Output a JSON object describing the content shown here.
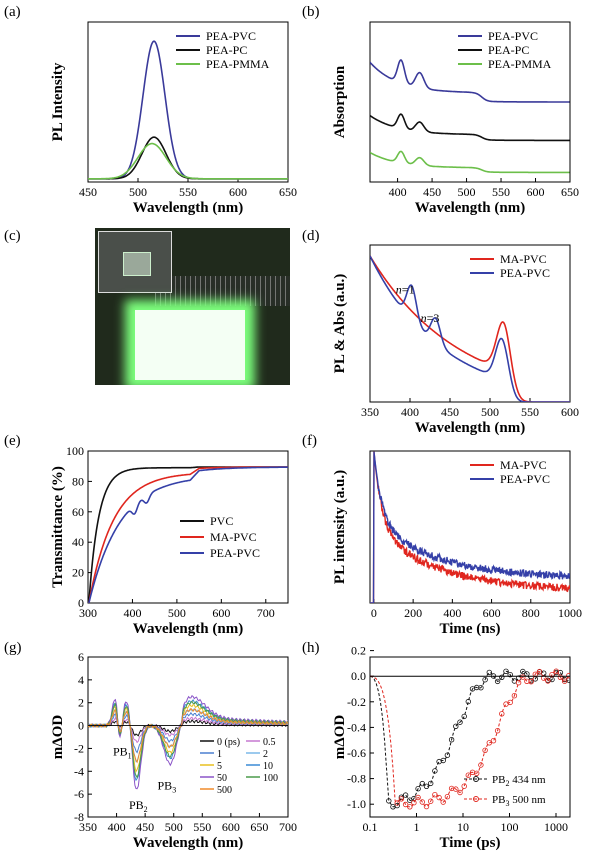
{
  "panels": {
    "a": "(a)",
    "b": "(b)",
    "c": "(c)",
    "d": "(d)",
    "e": "(e)",
    "f": "(f)",
    "g": "(g)",
    "h": "(h)"
  },
  "chart_data": [
    {
      "id": "a",
      "type": "line",
      "xlabel": "Wavelength (nm)",
      "ylabel": "PL Intensity",
      "xlim": [
        450,
        650
      ],
      "ylim": [
        0,
        1.0
      ],
      "xticks": [
        450,
        500,
        550,
        600,
        650
      ],
      "yticks": [],
      "legend": "top-right",
      "series": [
        {
          "name": "PEA-PVC",
          "color": "#3a3a9a",
          "shape": "peak",
          "center": 516,
          "width": 11,
          "amp": 0.86,
          "base": 0.02
        },
        {
          "name": "PEA-PC",
          "color": "#111111",
          "shape": "peak",
          "center": 516,
          "width": 12,
          "amp": 0.26,
          "base": 0.02
        },
        {
          "name": "PEA-PMMA",
          "color": "#6cbf4a",
          "shape": "peak",
          "center": 514,
          "width": 14,
          "amp": 0.22,
          "base": 0.02
        }
      ]
    },
    {
      "id": "b",
      "type": "line",
      "xlabel": "Wavelength (nm)",
      "ylabel": "Absorption",
      "xlim": [
        360,
        650
      ],
      "ylim": [
        0,
        1.0
      ],
      "xticks": [
        400,
        450,
        500,
        550,
        600,
        650
      ],
      "yticks": [],
      "legend": "top-right",
      "series": [
        {
          "name": "PEA-PVC",
          "color": "#3a3a9a",
          "shape": "abs",
          "offset": 0.5,
          "scale": 1.6
        },
        {
          "name": "PEA-PC",
          "color": "#111111",
          "shape": "abs",
          "offset": 0.26,
          "scale": 1.0
        },
        {
          "name": "PEA-PMMA",
          "color": "#6cbf4a",
          "shape": "abs",
          "offset": 0.06,
          "scale": 0.8
        }
      ]
    },
    {
      "id": "d",
      "type": "line",
      "xlabel": "Wavelength (nm)",
      "ylabel": "PL & Abs (a.u.)",
      "xlim": [
        350,
        600
      ],
      "ylim": [
        0,
        1.0
      ],
      "xticks": [
        350,
        400,
        450,
        500,
        550,
        600
      ],
      "yticks": [],
      "legend": "top-right",
      "annotations": [
        "n=1",
        "n=3"
      ],
      "series": [
        {
          "name": "MA-PVC",
          "color": "#e0261e",
          "shape": "maabs",
          "peak": 518
        },
        {
          "name": "PEA-PVC",
          "color": "#3540a8",
          "shape": "peaabs",
          "peak": 516
        }
      ]
    },
    {
      "id": "e",
      "type": "line",
      "xlabel": "Wavelength (nm)",
      "ylabel": "Transmittance (%)",
      "xlim": [
        300,
        750
      ],
      "ylim": [
        0,
        100
      ],
      "xticks": [
        300,
        400,
        500,
        600,
        700
      ],
      "yticks": [
        0,
        20,
        40,
        60,
        80,
        100
      ],
      "legend": "right",
      "series": [
        {
          "name": "PVC",
          "color": "#111111",
          "shape": "trans",
          "plateau": 89,
          "k": 22
        },
        {
          "name": "MA-PVC",
          "color": "#e0261e",
          "shape": "trans",
          "plateau": 86,
          "k": 55
        },
        {
          "name": "PEA-PVC",
          "color": "#3540a8",
          "shape": "trans",
          "plateau": 84,
          "k": 70
        }
      ]
    },
    {
      "id": "f",
      "type": "line",
      "xlabel": "Time (ns)",
      "ylabel": "PL intensity (a.u.)",
      "xlim": [
        -20,
        1000
      ],
      "ylim": [
        0,
        1.0
      ],
      "xticks": [
        0,
        200,
        400,
        600,
        800,
        1000
      ],
      "yticks": [],
      "legend": "top-right",
      "series": [
        {
          "name": "MA-PVC",
          "color": "#e0261e",
          "shape": "decay",
          "tail": 0.08
        },
        {
          "name": "PEA-PVC",
          "color": "#3540a8",
          "shape": "decay",
          "tail": 0.16
        }
      ]
    },
    {
      "id": "g",
      "type": "line",
      "xlabel": "Wavelength (nm)",
      "ylabel": "mΔOD",
      "xlim": [
        350,
        700
      ],
      "ylim": [
        -8,
        6
      ],
      "xticks": [
        350,
        400,
        450,
        500,
        550,
        600,
        650,
        700
      ],
      "yticks": [
        -8,
        -6,
        -4,
        -2,
        0,
        2,
        4,
        6
      ],
      "legend": "bottom-right",
      "annotations": [
        "PB1",
        "PB2",
        "PB3"
      ],
      "series": [
        {
          "name": "0 (ps)",
          "color": "#111111",
          "amp": 0.15
        },
        {
          "name": "0.5",
          "color": "#c678d0",
          "amp": 0.25
        },
        {
          "name": "1",
          "color": "#4a7fd0",
          "amp": 0.4
        },
        {
          "name": "2",
          "color": "#7ab8e8",
          "amp": 0.55
        },
        {
          "name": "5",
          "color": "#e8c020",
          "amp": 0.7
        },
        {
          "name": "10",
          "color": "#3a8ad6",
          "amp": 0.85
        },
        {
          "name": "50",
          "color": "#8a54c8",
          "amp": 1.0
        },
        {
          "name": "100",
          "color": "#4a9a4a",
          "amp": 0.8
        },
        {
          "name": "500",
          "color": "#f08a2a",
          "amp": 0.55
        }
      ]
    },
    {
      "id": "h",
      "type": "scatter",
      "xlabel": "Time (ps)",
      "ylabel": "mΔOD",
      "xlim": [
        0.1,
        2000
      ],
      "ylim": [
        -1.1,
        0.15
      ],
      "xscale": "log",
      "xticks": [
        0.1,
        1,
        10,
        100,
        1000
      ],
      "yticks": [
        -1.0,
        -0.8,
        -0.6,
        -0.4,
        -0.2,
        0.0,
        0.2
      ],
      "legend": "bottom-right",
      "series": [
        {
          "name": "PB2 434 nm",
          "color": "#111111",
          "rise": 0.25,
          "tau": 8
        },
        {
          "name": "PB3 500 nm",
          "color": "#e0261e",
          "rise": 0.35,
          "tau": 60
        }
      ]
    }
  ]
}
